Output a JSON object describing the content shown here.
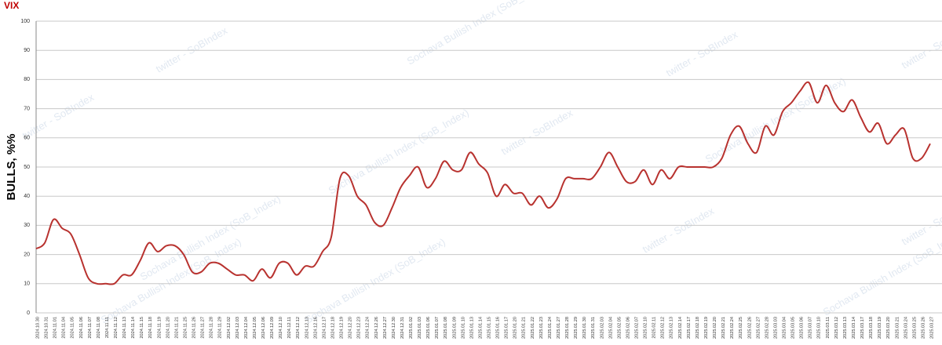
{
  "chart_data": {
    "type": "line",
    "title": "VIX",
    "y_label": "BULLS, %%",
    "watermarks": [
      "twitter - SoBIndex",
      "Sochava Bullish Index (SoB_Index)"
    ],
    "ylim": [
      0,
      100
    ],
    "yticks": [
      0,
      10,
      20,
      30,
      40,
      50,
      60,
      70,
      80,
      90,
      100
    ],
    "grid": true,
    "categories": [
      "2024.10.30",
      "2024.10.31",
      "2024.11.01",
      "2024.11.04",
      "2024.11.05",
      "2024.11.06",
      "2024.11.07",
      "2024.11.08",
      "2024.11.11",
      "2024.11.12",
      "2024.11.13",
      "2024.11.14",
      "2024.11.15",
      "2024.11.18",
      "2024.11.19",
      "2024.11.20",
      "2024.11.21",
      "2024.11.25",
      "2024.11.26",
      "2024.11.27",
      "2024.11.28",
      "2024.11.29",
      "2024.12.02",
      "2024.12.03",
      "2024.12.04",
      "2024.12.05",
      "2024.12.06",
      "2024.12.09",
      "2024.12.10",
      "2024.12.11",
      "2024.12.12",
      "2024.12.13",
      "2024.12.16",
      "2024.12.17",
      "2024.12.18",
      "2024.12.19",
      "2024.12.20",
      "2024.12.23",
      "2024.12.24",
      "2024.12.26",
      "2024.12.27",
      "2024.12.30",
      "2024.12.31",
      "2025.01.02",
      "2025.01.03",
      "2025.01.06",
      "2025.01.07",
      "2025.01.08",
      "2025.01.09",
      "2025.01.10",
      "2025.01.13",
      "2025.01.14",
      "2025.01.15",
      "2025.01.16",
      "2025.01.17",
      "2025.01.20",
      "2025.01.21",
      "2025.01.22",
      "2025.01.23",
      "2025.01.24",
      "2025.01.27",
      "2025.01.28",
      "2025.01.29",
      "2025.01.30",
      "2025.01.31",
      "2025.02.03",
      "2025.02.04",
      "2025.02.05",
      "2025.02.06",
      "2025.02.07",
      "2025.02.10",
      "2025.02.11",
      "2025.02.12",
      "2025.02.13",
      "2025.02.14",
      "2025.02.17",
      "2025.02.18",
      "2025.02.19",
      "2025.02.20",
      "2025.02.21",
      "2025.02.24",
      "2025.02.25",
      "2025.02.26",
      "2025.02.27",
      "2025.02.28",
      "2025.03.03",
      "2025.03.04",
      "2025.03.05",
      "2025.03.06",
      "2025.03.07",
      "2025.03.10",
      "2025.03.11",
      "2025.03.12",
      "2025.03.13",
      "2025.03.14",
      "2025.03.17",
      "2025.03.18",
      "2025.03.19",
      "2025.03.20",
      "2025.03.21",
      "2025.03.24",
      "2025.03.25",
      "2025.03.26",
      "2025.03.27"
    ],
    "series": [
      {
        "name": "BULLS",
        "color": "#b8322f",
        "values": [
          22,
          24,
          32,
          29,
          27,
          20,
          12,
          10,
          10,
          10,
          13,
          13,
          18,
          24,
          21,
          23,
          23,
          20,
          14,
          14,
          17,
          17,
          15,
          13,
          13,
          11,
          15,
          12,
          17,
          17,
          13,
          16,
          16,
          21,
          26,
          46,
          47,
          40,
          37,
          31,
          30,
          36,
          43,
          47,
          50,
          43,
          46,
          52,
          49,
          49,
          55,
          51,
          48,
          40,
          44,
          41,
          41,
          37,
          40,
          36,
          39,
          46,
          46,
          46,
          46,
          50,
          55,
          50,
          45,
          45,
          49,
          44,
          49,
          46,
          50,
          50,
          50,
          50,
          50,
          53,
          61,
          64,
          58,
          55,
          64,
          61,
          69,
          72,
          76,
          79,
          72,
          78,
          72,
          69,
          73,
          67,
          62,
          65,
          58,
          61,
          63,
          53,
          53,
          58
        ]
      }
    ]
  }
}
